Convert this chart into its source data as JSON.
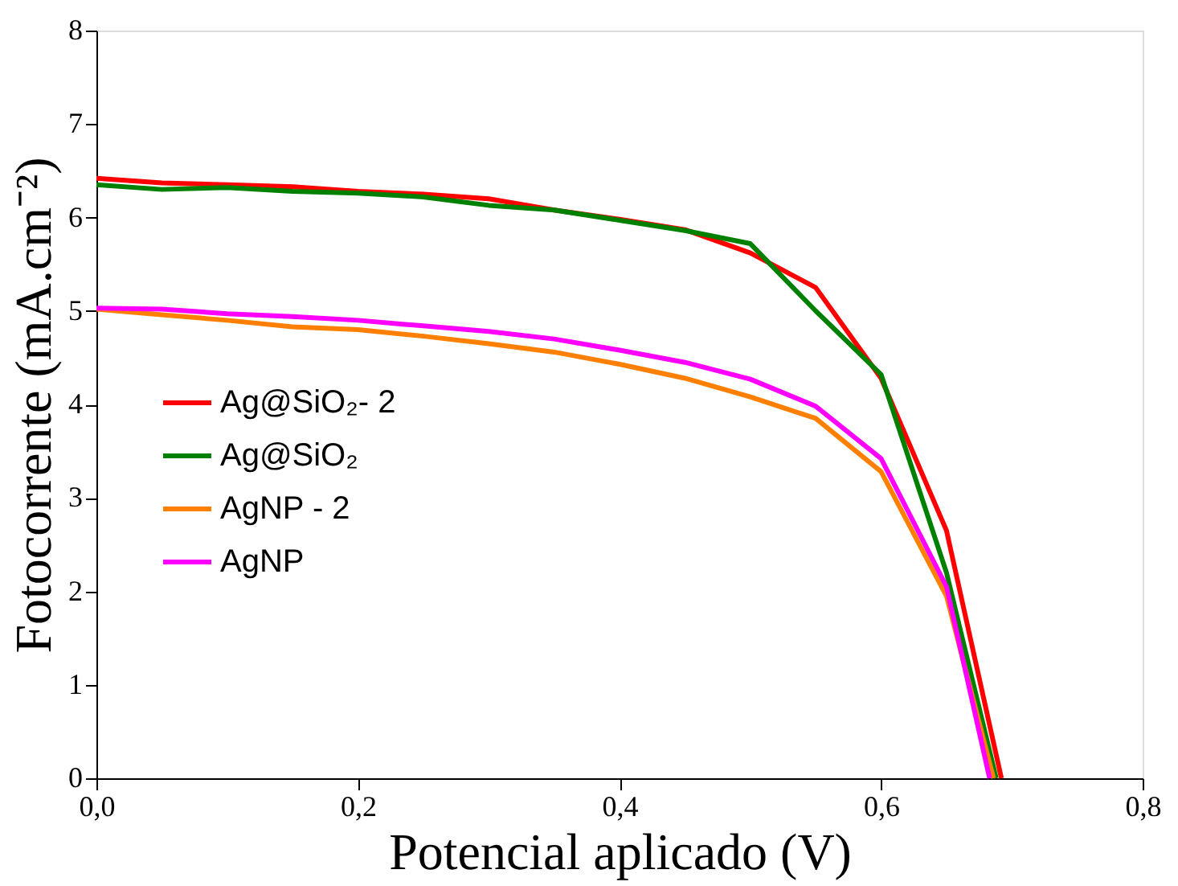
{
  "chart_data": {
    "type": "line",
    "xlabel": "Potencial aplicado (V)",
    "ylabel": "Fotocorrente (mA.cm⁻²)",
    "xlim": [
      0,
      0.8
    ],
    "ylim": [
      0,
      8
    ],
    "xticks": [
      {
        "value": 0,
        "label": "0,0"
      },
      {
        "value": 0.2,
        "label": "0,2"
      },
      {
        "value": 0.4,
        "label": "0,4"
      },
      {
        "value": 0.6,
        "label": "0,6"
      },
      {
        "value": 0.8,
        "label": "0,8"
      }
    ],
    "yticks": [
      0,
      1,
      2,
      3,
      4,
      5,
      6,
      7,
      8
    ],
    "grid": false,
    "legend": "left",
    "marker": "none",
    "line_style": "solid",
    "series": [
      {
        "name": "Ag@SiO₂- 2",
        "color": "#ff0000",
        "x": [
          0,
          0.05,
          0.1,
          0.15,
          0.2,
          0.25,
          0.3,
          0.35,
          0.4,
          0.45,
          0.5,
          0.55,
          0.6,
          0.65,
          0.692
        ],
        "values": [
          6.42,
          6.37,
          6.35,
          6.33,
          6.28,
          6.25,
          6.2,
          6.08,
          5.98,
          5.87,
          5.62,
          5.25,
          4.28,
          2.65,
          0
        ]
      },
      {
        "name": "Ag@SiO₂",
        "color": "#008000",
        "x": [
          0,
          0.05,
          0.1,
          0.15,
          0.2,
          0.25,
          0.3,
          0.35,
          0.4,
          0.45,
          0.5,
          0.55,
          0.6,
          0.65,
          0.688
        ],
        "values": [
          6.35,
          6.3,
          6.32,
          6.28,
          6.26,
          6.22,
          6.13,
          6.08,
          5.97,
          5.86,
          5.72,
          5.0,
          4.32,
          2.2,
          0
        ]
      },
      {
        "name": "AgNP - 2",
        "color": "#ff8000",
        "x": [
          0,
          0.05,
          0.1,
          0.15,
          0.2,
          0.25,
          0.3,
          0.35,
          0.4,
          0.45,
          0.5,
          0.55,
          0.6,
          0.65,
          0.686
        ],
        "values": [
          5.02,
          4.96,
          4.9,
          4.83,
          4.8,
          4.73,
          4.65,
          4.56,
          4.43,
          4.28,
          4.08,
          3.85,
          3.28,
          1.95,
          0
        ]
      },
      {
        "name": "AgNP",
        "color": "#ff00ff",
        "x": [
          0,
          0.05,
          0.1,
          0.15,
          0.2,
          0.25,
          0.3,
          0.35,
          0.4,
          0.45,
          0.5,
          0.55,
          0.6,
          0.65,
          0.683
        ],
        "values": [
          5.03,
          5.02,
          4.97,
          4.94,
          4.9,
          4.84,
          4.78,
          4.7,
          4.58,
          4.45,
          4.27,
          3.98,
          3.42,
          2.05,
          0
        ]
      }
    ]
  }
}
